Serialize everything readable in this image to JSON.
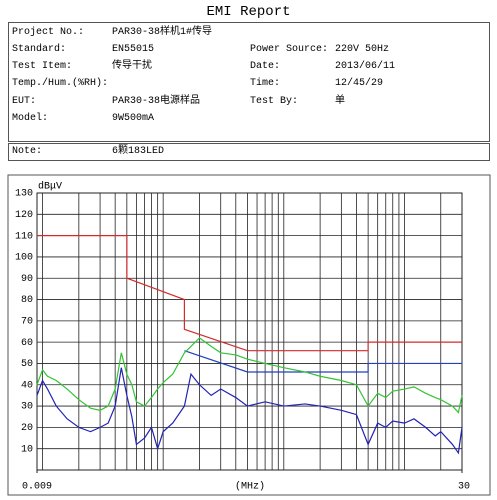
{
  "title": "EMI Report",
  "info": {
    "project_no": {
      "label": "Project No.:",
      "value": "PAR30-38样机1#传导"
    },
    "standard": {
      "label": "Standard:",
      "value": "EN55015"
    },
    "power_source": {
      "label": "Power Source:",
      "value": "220V 50Hz"
    },
    "test_item": {
      "label": "Test Item:",
      "value": "传导干扰"
    },
    "date": {
      "label": "Date:",
      "value": "2013/06/11"
    },
    "temp_hum": {
      "label": "Temp./Hum.(%RH):"
    },
    "time": {
      "label": "Time:",
      "value": "12/45/29"
    },
    "eut": {
      "label": "EUT:",
      "value": "PAR30-38电源样品"
    },
    "test_by": {
      "label": "Test By:",
      "value": "单"
    },
    "model": {
      "label": "Model:",
      "value": "9W500mA"
    },
    "note": {
      "label": "Note:",
      "value": "6颗183LED"
    }
  },
  "chart_data": {
    "type": "line",
    "ylabel": "dBμV",
    "xlabel": "(MHz)",
    "xscale": "log",
    "xlim": [
      0.009,
      30
    ],
    "ylim": [
      0,
      130
    ],
    "yticks": [
      10,
      20,
      30,
      40,
      50,
      60,
      70,
      80,
      90,
      100,
      110,
      120,
      130
    ],
    "xticks": [
      {
        "value": 0.009,
        "label": "0.009"
      },
      30
    ],
    "xminor": [
      0.01,
      0.02,
      0.03,
      0.04,
      0.05,
      0.06,
      0.07,
      0.08,
      0.09,
      0.1,
      0.2,
      0.3,
      0.4,
      0.5,
      0.6,
      0.7,
      0.8,
      0.9,
      1,
      2,
      3,
      4,
      5,
      6,
      7,
      8,
      9,
      10,
      20
    ],
    "grid": true,
    "series": [
      {
        "color": "#d42a2a",
        "x": [
          0.009,
          0.05,
          0.05,
          0.15,
          0.15,
          0.5,
          5,
          5,
          30
        ],
        "values": [
          110,
          110,
          90,
          80,
          66,
          56,
          56,
          60,
          60
        ]
      },
      {
        "color": "#2040c0",
        "x": [
          0.15,
          0.5,
          5,
          5,
          30
        ],
        "values": [
          56,
          46,
          46,
          50,
          50
        ]
      },
      {
        "color": "#33c433",
        "x": [
          0.009,
          0.01,
          0.011,
          0.013,
          0.016,
          0.02,
          0.025,
          0.03,
          0.035,
          0.04,
          0.045,
          0.05,
          0.055,
          0.06,
          0.07,
          0.08,
          0.09,
          0.1,
          0.12,
          0.15,
          0.17,
          0.2,
          0.25,
          0.3,
          0.4,
          0.5,
          0.7,
          1,
          1.5,
          2,
          3,
          4,
          5,
          6,
          7,
          8,
          10,
          12,
          15,
          18,
          20,
          25,
          28,
          30
        ],
        "values": [
          40,
          47,
          44,
          42,
          38,
          33,
          29,
          28,
          30,
          38,
          55,
          45,
          40,
          32,
          30,
          34,
          38,
          41,
          45,
          55,
          58,
          62,
          58,
          55,
          54,
          52,
          50,
          48,
          46,
          44,
          42,
          40,
          30,
          36,
          34,
          37,
          38,
          39,
          36,
          34,
          33,
          30,
          27,
          35
        ]
      },
      {
        "color": "#2222b8",
        "x": [
          0.009,
          0.01,
          0.011,
          0.013,
          0.016,
          0.02,
          0.025,
          0.03,
          0.035,
          0.04,
          0.045,
          0.05,
          0.055,
          0.06,
          0.07,
          0.08,
          0.09,
          0.1,
          0.12,
          0.15,
          0.17,
          0.2,
          0.25,
          0.3,
          0.4,
          0.5,
          0.7,
          1,
          1.5,
          2,
          3,
          4,
          5,
          6,
          7,
          8,
          10,
          12,
          15,
          18,
          20,
          25,
          28,
          30
        ],
        "values": [
          35,
          42,
          38,
          30,
          24,
          20,
          18,
          20,
          22,
          30,
          48,
          35,
          25,
          12,
          15,
          20,
          10,
          18,
          22,
          30,
          45,
          40,
          35,
          38,
          34,
          30,
          32,
          30,
          31,
          30,
          28,
          26,
          12,
          22,
          20,
          23,
          22,
          24,
          20,
          16,
          18,
          12,
          8,
          20
        ]
      }
    ]
  }
}
